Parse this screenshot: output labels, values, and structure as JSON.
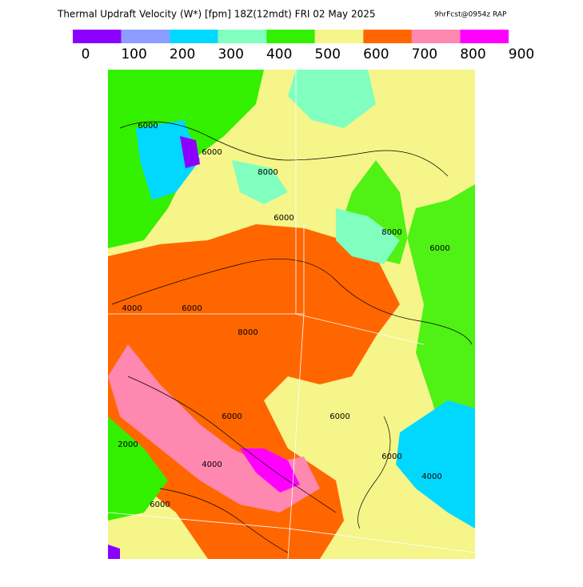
{
  "header": {
    "title": "Thermal Updraft Velocity (W*) [fpm] 18Z(12mdt) FRI 02 May 2025",
    "subtitle": "9hrFcst@0954z RAP"
  },
  "colorbar": {
    "ticks": [
      0,
      100,
      200,
      300,
      400,
      500,
      600,
      700,
      800,
      900
    ],
    "colors": [
      "#8c00ff",
      "#8c9cff",
      "#00d8ff",
      "#80ffbf",
      "#33f000",
      "#f5f58a",
      "#ff6600",
      "#ff88b0",
      "#ff00ff"
    ]
  },
  "map": {
    "contour_labels": [
      "6000",
      "6000",
      "8000",
      "6000",
      "4000",
      "6000",
      "8000",
      "6000",
      "2000",
      "4000",
      "6000",
      "8000",
      "6000",
      "6000",
      "4000",
      "6000"
    ]
  }
}
